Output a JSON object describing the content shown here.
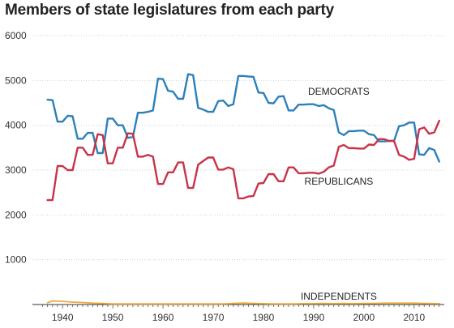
{
  "chart_data": {
    "type": "line",
    "title": "Members of state legislatures from each party",
    "xlabel": "",
    "ylabel": "",
    "xlim": [
      1934,
      2016
    ],
    "ylim": [
      0,
      6000
    ],
    "y_ticks": [
      0,
      1000,
      2000,
      3000,
      4000,
      5000,
      6000
    ],
    "y_tick_labels": [
      "",
      "1000",
      "2000",
      "3000",
      "4000",
      "5000",
      "6000"
    ],
    "x_ticks": [
      1940,
      1950,
      1960,
      1970,
      1980,
      1990,
      2000,
      2010
    ],
    "x_tick_labels": [
      "1940",
      "1950",
      "1960",
      "1970",
      "1980",
      "1990",
      "2000",
      "2010"
    ],
    "grid": true,
    "legend": "direct labels on lines",
    "colors": {
      "democrats": "#2c80ba",
      "republicans": "#c8334a",
      "independents": "#f0a93b"
    },
    "series": [
      {
        "name": "DEMOCRATS",
        "label_pos": [
          1995,
          4750
        ],
        "x": [
          1937,
          1938,
          1939,
          1940,
          1941,
          1942,
          1943,
          1944,
          1945,
          1946,
          1947,
          1948,
          1949,
          1950,
          1951,
          1952,
          1953,
          1954,
          1955,
          1956,
          1957,
          1958,
          1959,
          1960,
          1961,
          1962,
          1963,
          1964,
          1965,
          1966,
          1967,
          1968,
          1969,
          1970,
          1971,
          1972,
          1973,
          1974,
          1975,
          1976,
          1977,
          1978,
          1979,
          1980,
          1981,
          1982,
          1983,
          1984,
          1985,
          1986,
          1987,
          1988,
          1989,
          1990,
          1991,
          1992,
          1993,
          1994,
          1995,
          1996,
          1997,
          1998,
          1999,
          2000,
          2001,
          2002,
          2003,
          2004,
          2005,
          2006,
          2007,
          2008,
          2009,
          2010,
          2011,
          2012,
          2013,
          2014,
          2015
        ],
        "y": [
          4570,
          4560,
          4080,
          4080,
          4210,
          4200,
          3700,
          3700,
          3830,
          3830,
          3380,
          3380,
          4150,
          4150,
          4000,
          4000,
          3720,
          3740,
          4280,
          4280,
          4300,
          4330,
          5040,
          5030,
          4770,
          4750,
          4590,
          4590,
          5140,
          5120,
          4390,
          4350,
          4300,
          4300,
          4540,
          4550,
          4430,
          4470,
          5100,
          5100,
          5090,
          5080,
          4730,
          4720,
          4500,
          4490,
          4640,
          4650,
          4330,
          4330,
          4460,
          4460,
          4470,
          4470,
          4430,
          4450,
          4380,
          4340,
          3840,
          3780,
          3870,
          3870,
          3880,
          3880,
          3800,
          3780,
          3640,
          3640,
          3650,
          3650,
          3980,
          4000,
          4060,
          4060,
          3350,
          3340,
          3490,
          3450,
          3190
        ]
      },
      {
        "name": "REPUBLICANS",
        "label_pos": [
          1995,
          2750
        ],
        "x": [
          1937,
          1938,
          1939,
          1940,
          1941,
          1942,
          1943,
          1944,
          1945,
          1946,
          1947,
          1948,
          1949,
          1950,
          1951,
          1952,
          1953,
          1954,
          1955,
          1956,
          1957,
          1958,
          1959,
          1960,
          1961,
          1962,
          1963,
          1964,
          1965,
          1966,
          1967,
          1968,
          1969,
          1970,
          1971,
          1972,
          1973,
          1974,
          1975,
          1976,
          1977,
          1978,
          1979,
          1980,
          1981,
          1982,
          1983,
          1984,
          1985,
          1986,
          1987,
          1988,
          1989,
          1990,
          1991,
          1992,
          1993,
          1994,
          1995,
          1996,
          1997,
          1998,
          1999,
          2000,
          2001,
          2002,
          2003,
          2004,
          2005,
          2006,
          2007,
          2008,
          2009,
          2010,
          2011,
          2012,
          2013,
          2014,
          2015
        ],
        "y": [
          2330,
          2330,
          3090,
          3090,
          3000,
          3000,
          3500,
          3500,
          3340,
          3340,
          3800,
          3780,
          3150,
          3150,
          3500,
          3500,
          3820,
          3810,
          3300,
          3300,
          3340,
          3300,
          2690,
          2690,
          2950,
          2950,
          3170,
          3170,
          2600,
          2600,
          3120,
          3200,
          3280,
          3280,
          3010,
          3010,
          3060,
          3020,
          2370,
          2370,
          2410,
          2420,
          2700,
          2710,
          2910,
          2910,
          2750,
          2750,
          3060,
          3060,
          2930,
          2930,
          2940,
          2940,
          2920,
          2960,
          3060,
          3100,
          3520,
          3560,
          3490,
          3490,
          3480,
          3480,
          3570,
          3560,
          3690,
          3690,
          3650,
          3650,
          3340,
          3300,
          3230,
          3250,
          3910,
          3950,
          3810,
          3840,
          4100
        ]
      },
      {
        "name": "INDEPENDENTS",
        "label_pos": [
          1995,
          180
        ],
        "x": [
          1937,
          1938,
          1940,
          1942,
          1944,
          1946,
          1948,
          1950,
          1952,
          1954,
          1956,
          1958,
          1960,
          1962,
          1964,
          1966,
          1968,
          1970,
          1972,
          1974,
          1976,
          1978,
          1980,
          1982,
          1984,
          1986,
          1988,
          1990,
          1992,
          1994,
          1996,
          1998,
          2000,
          2002,
          2004,
          2006,
          2008,
          2010,
          2012,
          2014,
          2015
        ],
        "y": [
          40,
          80,
          70,
          55,
          45,
          30,
          25,
          15,
          15,
          15,
          15,
          15,
          15,
          15,
          15,
          15,
          15,
          15,
          15,
          25,
          35,
          25,
          20,
          15,
          15,
          15,
          20,
          20,
          25,
          20,
          25,
          20,
          25,
          25,
          30,
          30,
          30,
          30,
          25,
          20,
          20
        ]
      }
    ]
  }
}
